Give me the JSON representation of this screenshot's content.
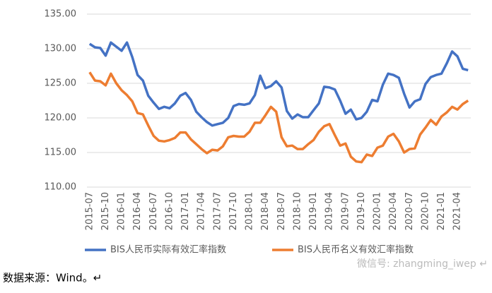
{
  "chart_data": {
    "type": "line",
    "categories": [
      "2015-07",
      null,
      null,
      "2015-10",
      null,
      null,
      "2016-01",
      null,
      null,
      "2016-04",
      null,
      null,
      "2016-07",
      null,
      null,
      "2016-10",
      null,
      null,
      "2017-01",
      null,
      null,
      "2017-04",
      null,
      null,
      "2017-07",
      null,
      null,
      "2017-10",
      null,
      null,
      "2018-01",
      null,
      null,
      "2018-04",
      null,
      null,
      "2018-07",
      null,
      null,
      "2018-10",
      null,
      null,
      "2019-01",
      null,
      null,
      "2019-04",
      null,
      null,
      "2019-07",
      null,
      null,
      "2019-10",
      null,
      null,
      "2020-01",
      null,
      null,
      "2020-04",
      null,
      null,
      "2020-07",
      null,
      null,
      "2020-10",
      null,
      null,
      "2021-01",
      null,
      null,
      "2021-04",
      null,
      null
    ],
    "series": [
      {
        "name": "BIS人民币实际有效汇率指数",
        "color": "#4472c4",
        "values": [
          130.7,
          130.2,
          130.1,
          129.0,
          130.9,
          130.3,
          129.7,
          130.9,
          128.8,
          126.2,
          125.4,
          123.2,
          122.2,
          121.3,
          121.6,
          121.4,
          122.1,
          123.2,
          123.6,
          122.6,
          120.9,
          120.1,
          119.4,
          118.9,
          119.1,
          119.3,
          120.0,
          121.7,
          122.0,
          121.9,
          122.1,
          123.3,
          126.1,
          124.3,
          124.6,
          125.3,
          124.4,
          121.0,
          119.9,
          120.5,
          120.1,
          120.1,
          121.1,
          122.1,
          124.5,
          124.4,
          124.1,
          122.5,
          120.6,
          121.2,
          119.8,
          120.0,
          120.9,
          122.6,
          122.4,
          124.8,
          126.4,
          126.2,
          125.8,
          123.5,
          121.5,
          122.4,
          122.7,
          124.9,
          125.9,
          126.2,
          126.4,
          127.9,
          129.6,
          128.9,
          127.1,
          126.9
        ]
      },
      {
        "name": "BIS人民币名义有效汇率指数",
        "color": "#ed7d31",
        "values": [
          126.6,
          125.4,
          125.3,
          124.7,
          126.4,
          125.0,
          124.0,
          123.3,
          122.4,
          120.7,
          120.5,
          118.9,
          117.4,
          116.7,
          116.6,
          116.8,
          117.1,
          117.9,
          117.9,
          116.9,
          116.2,
          115.5,
          114.9,
          115.4,
          115.3,
          115.9,
          117.2,
          117.4,
          117.3,
          117.3,
          118.0,
          119.3,
          119.3,
          120.4,
          121.6,
          120.9,
          117.2,
          115.9,
          116.0,
          115.5,
          115.5,
          116.2,
          116.8,
          118.0,
          118.8,
          119.1,
          117.5,
          116.0,
          116.3,
          114.4,
          113.7,
          113.6,
          114.7,
          114.5,
          115.7,
          116.0,
          117.3,
          117.7,
          116.6,
          115.0,
          115.5,
          115.6,
          117.6,
          118.6,
          119.7,
          119.0,
          120.2,
          120.8,
          121.6,
          121.2,
          122.0,
          122.5
        ]
      }
    ],
    "ylim": [
      110,
      135
    ],
    "yticks": [
      {
        "value": 110,
        "label": "110.00"
      },
      {
        "value": 115,
        "label": "115.00"
      },
      {
        "value": 120,
        "label": "120.00"
      },
      {
        "value": 125,
        "label": "125.00"
      },
      {
        "value": 130,
        "label": "130.00"
      },
      {
        "value": 135,
        "label": "135.00"
      }
    ],
    "grid": true,
    "legend": "bottom",
    "source": "数据来源：Wind。↵",
    "watermark": "微信号: zhangming_iwep ↵"
  }
}
